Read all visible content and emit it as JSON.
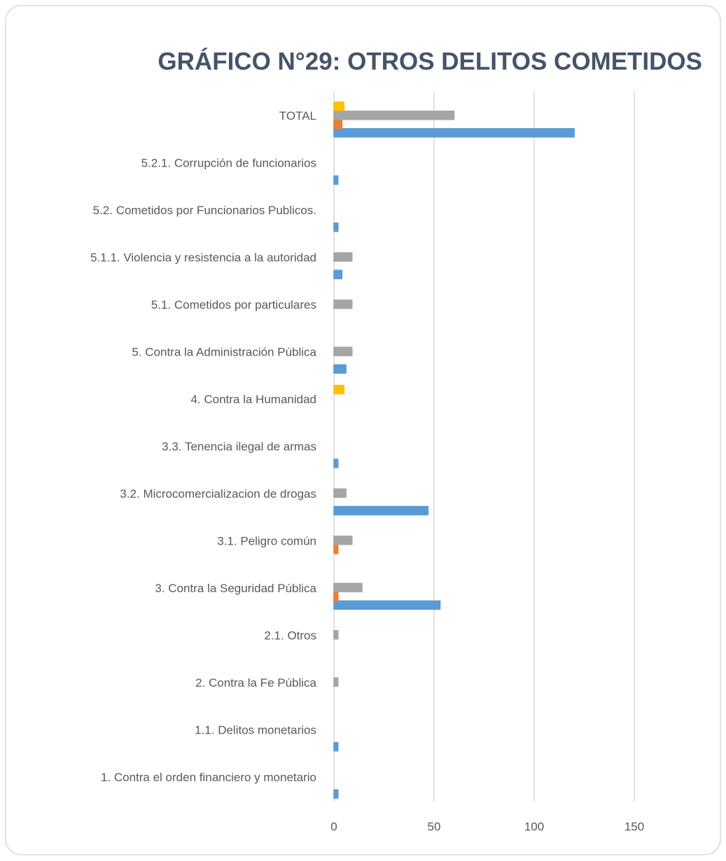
{
  "chart_data": {
    "type": "hbar",
    "title": "GRÁFICO N°29: OTROS DELITOS COMETIDOS",
    "categories": [
      "1. Contra el orden financiero y monetario",
      "1.1. Delitos monetarios",
      "2. Contra la Fe Pública",
      "2.1. Otros",
      "3. Contra la Seguridad Pública",
      "3.1. Peligro común",
      "3.2. Microcomercializacion de drogas",
      "3.3. Tenencia ilegal de armas",
      "4. Contra la Humanidad",
      "5. Contra la Administración Pública",
      "5.1. Cometidos por particulares",
      "5.1.1. Violencia y resistencia  a la autoridad",
      "5.2. Cometidos por Funcionarios Publicos.",
      "5.2.1. Corrupción de funcionarios",
      "TOTAL"
    ],
    "series": [
      {
        "color": "#5b9bd5",
        "values": [
          2,
          2,
          0,
          0,
          53,
          0,
          47,
          2,
          0,
          6,
          0,
          4,
          2,
          2,
          120
        ]
      },
      {
        "color": "#ed7d31",
        "values": [
          0,
          0,
          0,
          0,
          2,
          2,
          0,
          0,
          0,
          0,
          0,
          0,
          0,
          0,
          4
        ]
      },
      {
        "color": "#a5a5a5",
        "values": [
          0,
          0,
          2,
          2,
          14,
          9,
          6,
          0,
          0,
          9,
          9,
          9,
          0,
          0,
          60
        ]
      },
      {
        "color": "#ffc000",
        "values": [
          0,
          0,
          0,
          0,
          0,
          0,
          0,
          0,
          5,
          0,
          0,
          0,
          0,
          0,
          5
        ]
      }
    ],
    "xlim": [
      0,
      180
    ],
    "xticks": [
      0,
      50,
      100,
      150
    ],
    "grid": true
  }
}
